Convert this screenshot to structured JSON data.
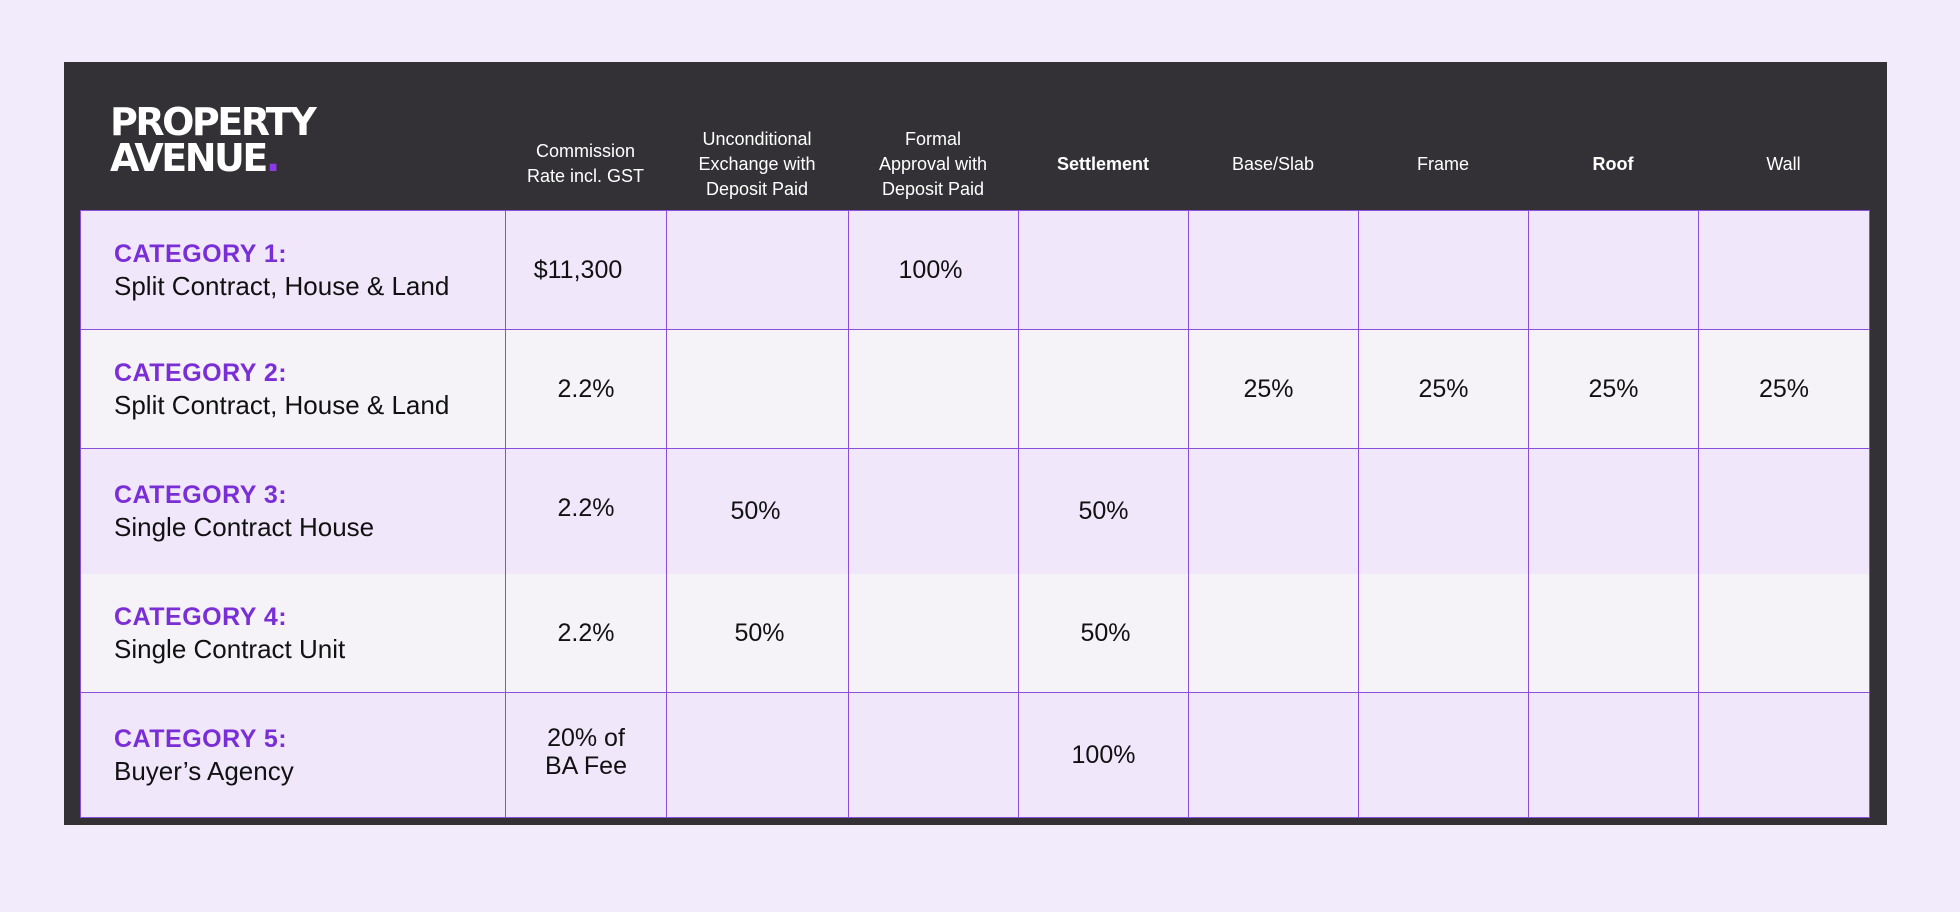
{
  "brand": {
    "line1": "PROPERTY",
    "line2": "AVENUE",
    "dot": "."
  },
  "headers": [
    "Commission\nRate incl. GST",
    "Unconditional\nExchange with\nDeposit Paid",
    "Formal\nApproval with\nDeposit Paid",
    "Settlement",
    "Base/Slab",
    "Frame",
    "Roof",
    "Wall"
  ],
  "rows": [
    {
      "title": "CATEGORY 1:",
      "desc": "Split Contract, House & Land",
      "cells": [
        "$11,300",
        "",
        "100%",
        "",
        "",
        "",
        "",
        ""
      ]
    },
    {
      "title": "CATEGORY 2:",
      "desc": "Split Contract, House & Land",
      "cells": [
        "2.2%",
        "",
        "",
        "",
        "25%",
        "25%",
        "25%",
        "25%"
      ]
    },
    {
      "title": "CATEGORY 3:",
      "desc": "Single Contract House",
      "cells": [
        "2.2%",
        "50%",
        "",
        "50%",
        "",
        "",
        "",
        ""
      ]
    },
    {
      "title": "CATEGORY 4:",
      "desc": "Single Contract Unit",
      "cells": [
        "2.2%",
        "50%",
        "",
        "50%",
        "",
        "",
        "",
        ""
      ]
    },
    {
      "title": "CATEGORY 5:",
      "desc": "Buyer’s Agency",
      "cells": [
        "20% of\nBA Fee",
        "",
        "",
        "100%",
        "",
        "",
        "",
        ""
      ]
    }
  ],
  "colors": {
    "background": "#f2ebfc",
    "frame": "#333135",
    "accent": "#7a2fd6",
    "grid_line": "#8a4fd8",
    "row_odd": "#f0e7fb",
    "row_even": "#f5f2f8"
  }
}
